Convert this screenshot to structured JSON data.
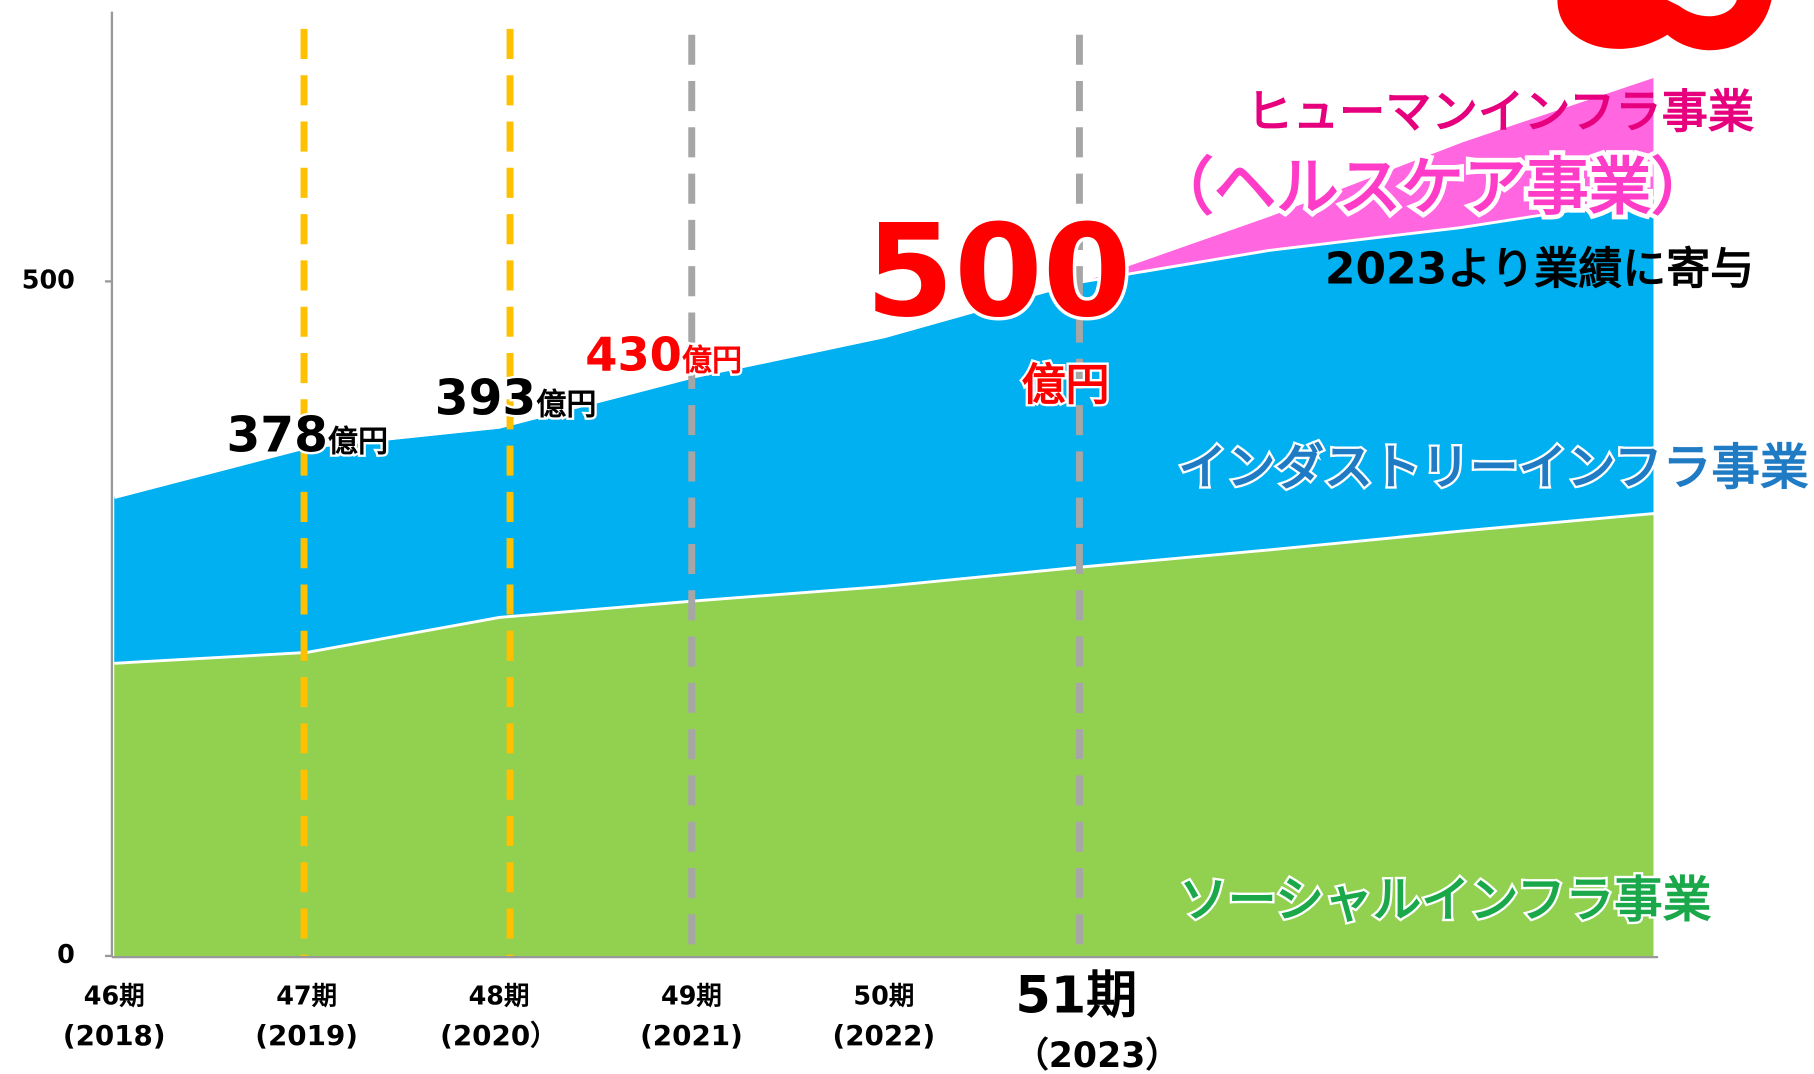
{
  "chart_data": {
    "type": "stacked_area",
    "categories": [
      "46期",
      "47期",
      "48期",
      "49期",
      "50期",
      "51期",
      null,
      null,
      null
    ],
    "category_years": [
      "(2018)",
      "(2019)",
      "(2020）",
      "(2021)",
      "(2022)",
      "（2023）",
      null,
      null,
      null
    ],
    "series": [
      {
        "name": "ソーシャルインフラ事業",
        "color": "#92d050",
        "values": [
          218,
          226,
          252,
          264,
          275,
          289,
          302,
          316,
          329
        ]
      },
      {
        "name": "インダストリーインフラ事業",
        "color": "#00b0f0",
        "values": [
          123,
          152,
          141,
          166,
          185,
          211,
          222,
          225,
          234
        ]
      },
      {
        "name": "ヒューマンインフラ事業",
        "color": "#ff66e0",
        "values": [
          0,
          0,
          0,
          0,
          0,
          0,
          26,
          64,
          90
        ]
      }
    ],
    "ylim": [
      0,
      700
    ],
    "yticks": [
      0,
      500
    ],
    "annotations": {
      "a378": {
        "number": "378",
        "unit": "億円"
      },
      "a393": {
        "number": "393",
        "unit": "億円"
      },
      "a430": {
        "number": "430",
        "unit": "億円"
      },
      "a500": {
        "number": "500",
        "unit": "億円"
      },
      "healthcare": "（ヘルスケア事業）",
      "contribution": "2023より業績に寄与"
    }
  }
}
